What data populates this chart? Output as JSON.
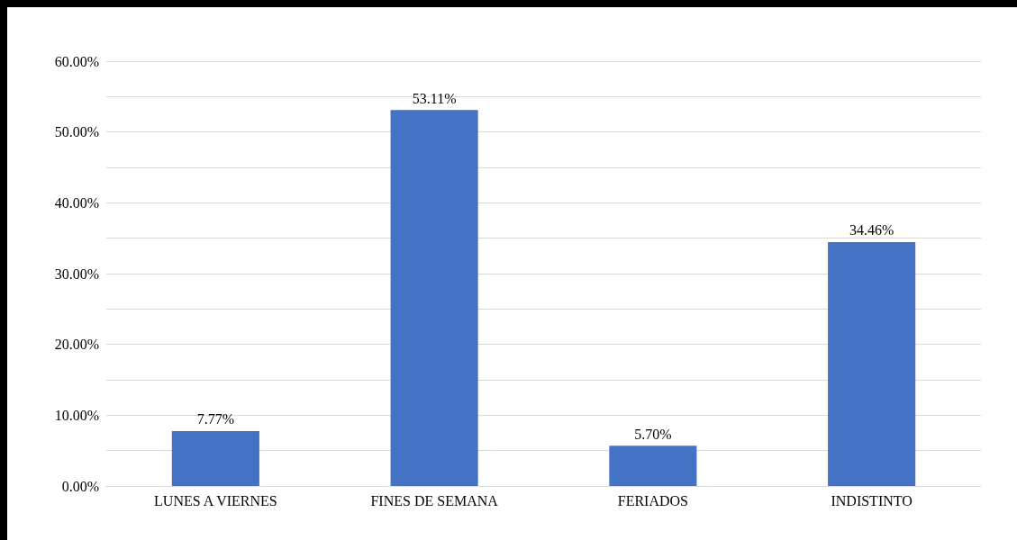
{
  "chart_data": {
    "type": "bar",
    "categories": [
      "LUNES A VIERNES",
      "FINES DE SEMANA",
      "FERIADOS",
      "INDISTINTO"
    ],
    "values": [
      7.77,
      53.11,
      5.7,
      34.46
    ],
    "value_labels": [
      "7.77%",
      "53.11%",
      "5.70%",
      "34.46%"
    ],
    "color": "#4472c4",
    "ylim": [
      0,
      60
    ],
    "yticks": [
      {
        "value": 0,
        "label": "0.00%"
      },
      {
        "value": 5,
        "label": null
      },
      {
        "value": 10,
        "label": "10.00%"
      },
      {
        "value": 15,
        "label": null
      },
      {
        "value": 20,
        "label": "20.00%"
      },
      {
        "value": 25,
        "label": null
      },
      {
        "value": 30,
        "label": "30.00%"
      },
      {
        "value": 35,
        "label": null
      },
      {
        "value": 40,
        "label": "40.00%"
      },
      {
        "value": 45,
        "label": null
      },
      {
        "value": 50,
        "label": "50.00%"
      },
      {
        "value": 55,
        "label": null
      },
      {
        "value": 60,
        "label": "60.00%"
      }
    ],
    "grid": true
  }
}
